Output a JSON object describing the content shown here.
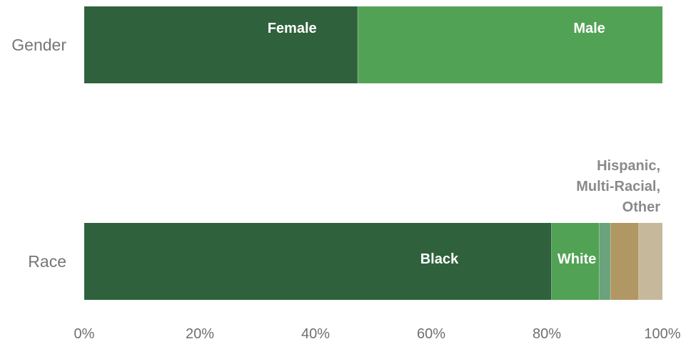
{
  "chart_data": {
    "type": "bar",
    "orientation": "horizontal",
    "stacked": true,
    "categories": [
      "Gender",
      "Race"
    ],
    "series": [
      {
        "row": "Gender",
        "segments": [
          {
            "label": "Female",
            "value": 47.3,
            "color": "#2f613c"
          },
          {
            "label": "Male",
            "value": 52.7,
            "color": "#52a255"
          }
        ]
      },
      {
        "row": "Race",
        "segments": [
          {
            "label": "Black",
            "value": 80.8,
            "color": "#2f613c"
          },
          {
            "label": "White",
            "value": 8.3,
            "color": "#52a255"
          },
          {
            "label": "",
            "value": 1.9,
            "color": "#6aa27c"
          },
          {
            "label": "",
            "value": 4.9,
            "color": "#b19763"
          },
          {
            "label": "",
            "value": 4.1,
            "color": "#c6b99b"
          }
        ]
      }
    ],
    "annotation": [
      "Hispanic,",
      "Multi-Racial,",
      "Other"
    ],
    "x_ticks": [
      "0%",
      "20%",
      "40%",
      "60%",
      "80%",
      "100%"
    ],
    "xlim": [
      0,
      100
    ],
    "grid": false,
    "legend": "none"
  }
}
